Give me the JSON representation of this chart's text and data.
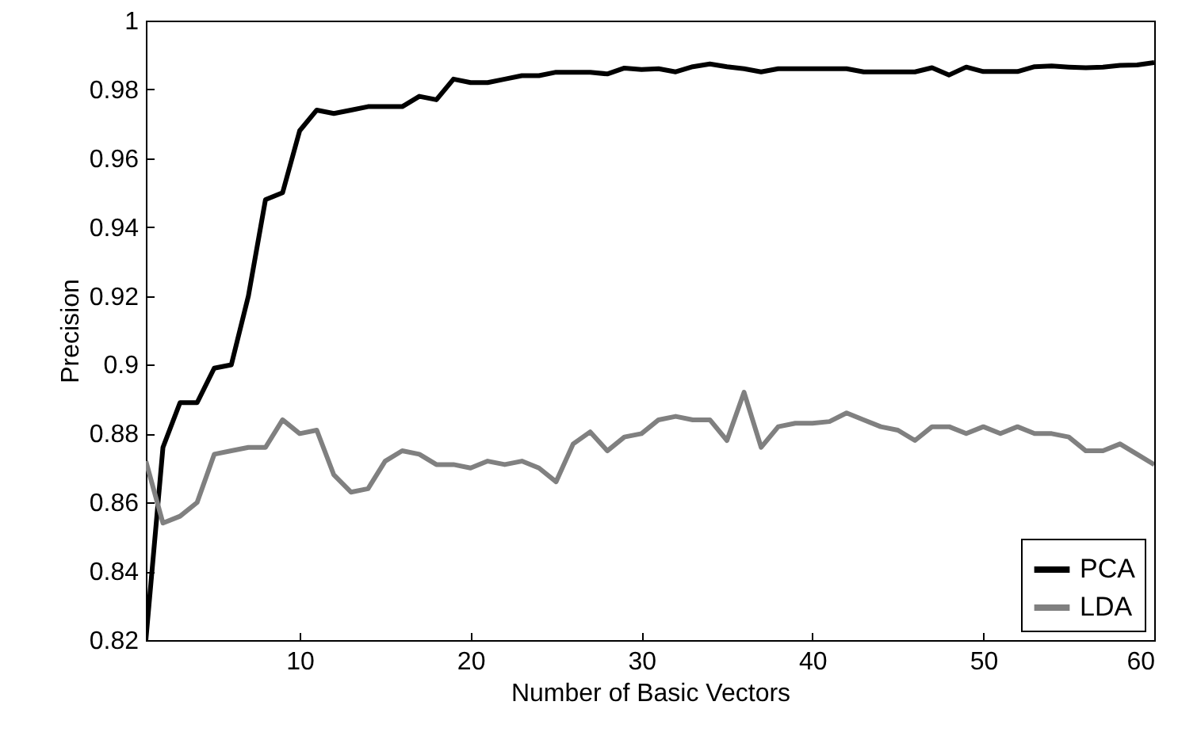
{
  "chart_data": {
    "type": "line",
    "xlabel": "Number of Basic Vectors",
    "ylabel": "Precision",
    "x": [
      1,
      2,
      3,
      4,
      5,
      6,
      7,
      8,
      9,
      10,
      11,
      12,
      13,
      14,
      15,
      16,
      17,
      18,
      19,
      20,
      21,
      22,
      23,
      24,
      25,
      26,
      27,
      28,
      29,
      30,
      31,
      32,
      33,
      34,
      35,
      36,
      37,
      38,
      39,
      40,
      41,
      42,
      43,
      44,
      45,
      46,
      47,
      48,
      49,
      50,
      51,
      52,
      53,
      54,
      55,
      56,
      57,
      58,
      59,
      60
    ],
    "series": [
      {
        "name": "PCA",
        "color": "#000000",
        "values": [
          0.82,
          0.876,
          0.889,
          0.889,
          0.899,
          0.9,
          0.92,
          0.948,
          0.95,
          0.968,
          0.974,
          0.973,
          0.974,
          0.975,
          0.975,
          0.975,
          0.978,
          0.977,
          0.983,
          0.982,
          0.982,
          0.983,
          0.984,
          0.984,
          0.985,
          0.985,
          0.985,
          0.9845,
          0.9862,
          0.9858,
          0.986,
          0.9851,
          0.9866,
          0.9874,
          0.9866,
          0.986,
          0.9851,
          0.986,
          0.986,
          0.986,
          0.986,
          0.986,
          0.9851,
          0.9851,
          0.9851,
          0.9851,
          0.9863,
          0.9842,
          0.9865,
          0.9852,
          0.9852,
          0.9852,
          0.9866,
          0.9868,
          0.9865,
          0.9863,
          0.9865,
          0.987,
          0.9871,
          0.9878
        ]
      },
      {
        "name": "LDA",
        "color": "#808080",
        "values": [
          0.872,
          0.854,
          0.856,
          0.86,
          0.874,
          0.875,
          0.876,
          0.876,
          0.884,
          0.88,
          0.881,
          0.868,
          0.863,
          0.864,
          0.872,
          0.875,
          0.874,
          0.871,
          0.871,
          0.87,
          0.872,
          0.871,
          0.872,
          0.87,
          0.866,
          0.877,
          0.8805,
          0.875,
          0.879,
          0.88,
          0.884,
          0.885,
          0.884,
          0.884,
          0.878,
          0.892,
          0.876,
          0.882,
          0.883,
          0.883,
          0.8835,
          0.886,
          0.884,
          0.882,
          0.881,
          0.878,
          0.882,
          0.882,
          0.88,
          0.882,
          0.88,
          0.882,
          0.88,
          0.88,
          0.879,
          0.875,
          0.875,
          0.877,
          0.874,
          0.871
        ]
      }
    ],
    "xlim": [
      1,
      60
    ],
    "xticks": [
      10,
      20,
      30,
      40,
      50,
      60
    ],
    "ylim": [
      0.82,
      1
    ],
    "yticks": [
      0.82,
      0.84,
      0.86,
      0.88,
      0.9,
      0.92,
      0.94,
      0.96,
      0.98,
      1
    ],
    "legend": "bottom right",
    "grid": false
  }
}
